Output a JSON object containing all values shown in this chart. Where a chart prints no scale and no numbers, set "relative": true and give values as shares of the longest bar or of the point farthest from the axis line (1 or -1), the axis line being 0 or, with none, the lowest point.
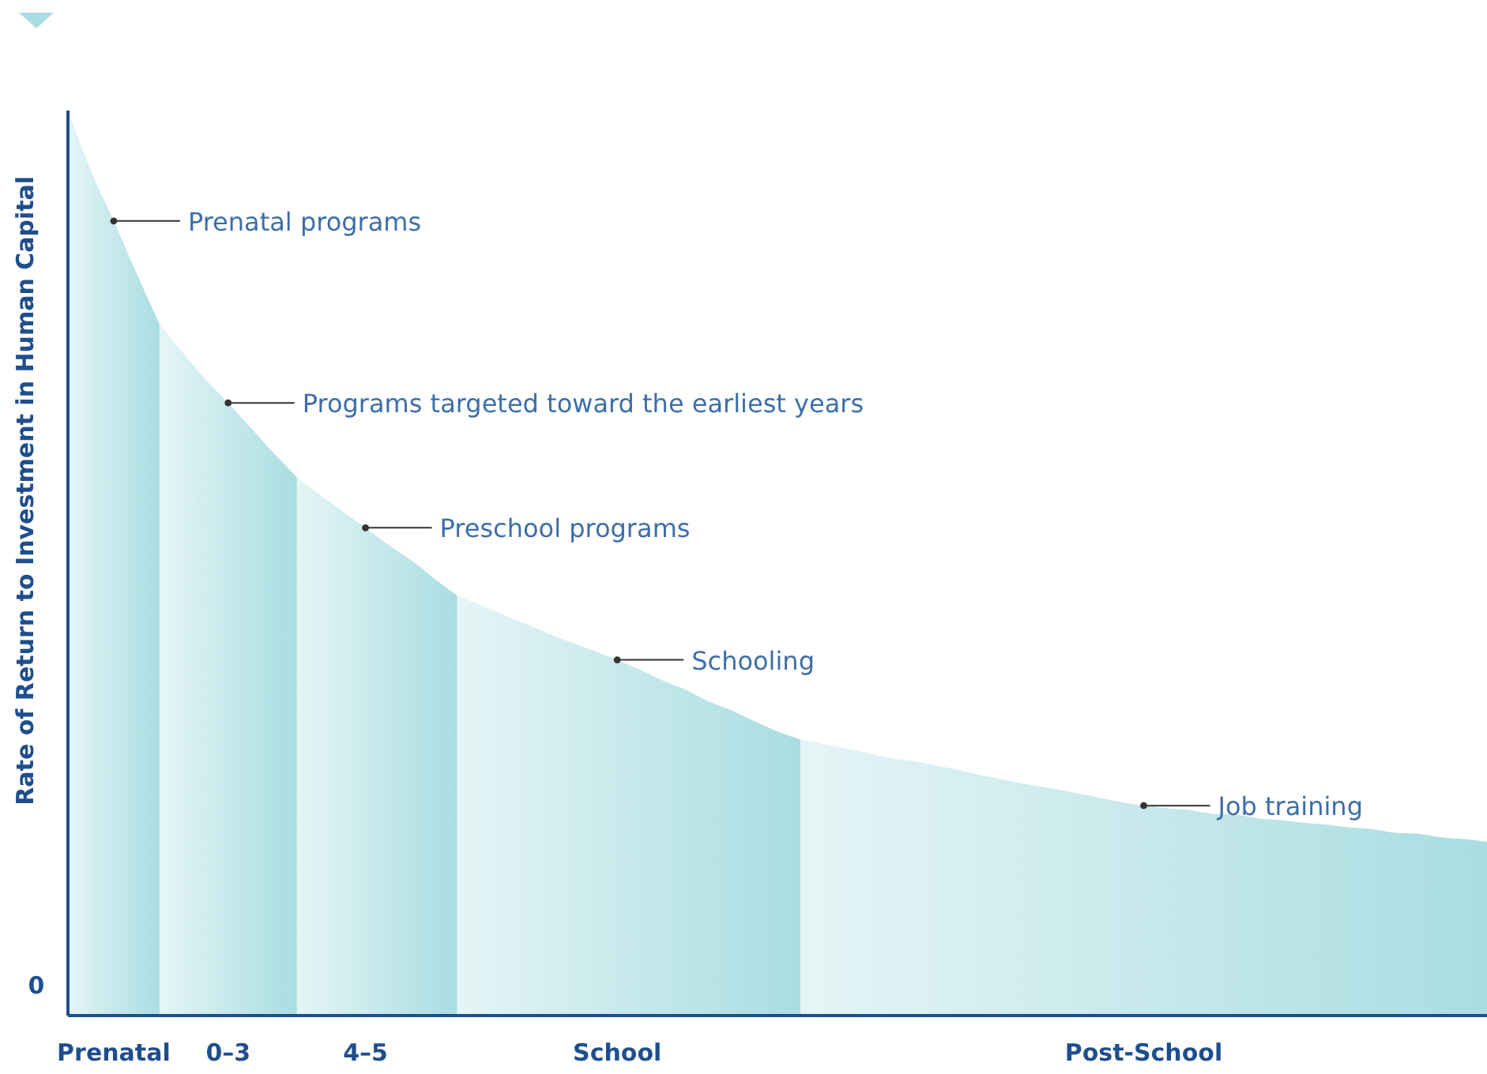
{
  "chart_data": {
    "type": "area",
    "relative": true,
    "ylabel": "Rate of Return to Investment in Human Capital",
    "categories": [
      null,
      null,
      "Prenatal",
      null,
      null,
      null,
      null,
      "0–3",
      null,
      null,
      null,
      null,
      null,
      "4–5",
      null,
      null,
      null,
      null,
      null,
      null,
      null,
      null,
      null,
      null,
      "School",
      null,
      null,
      null,
      null,
      null,
      null,
      null,
      null,
      null,
      null,
      null,
      null,
      null,
      null,
      null,
      null,
      null,
      null,
      null,
      null,
      null,
      null,
      "Post-School",
      null,
      null,
      null,
      null,
      null,
      null,
      null,
      null,
      null,
      null,
      null,
      null,
      null,
      null,
      null
    ],
    "series": [
      {
        "color": "#a9dde1",
        "values": [
          1.0,
          0.934,
          0.878,
          0.82,
          0.764,
          null,
          null,
          null,
          null,
          null,
          null,
          null,
          null,
          null,
          null,
          null,
          null,
          null,
          null,
          null,
          null,
          null,
          null,
          null,
          null,
          null,
          null,
          null,
          null,
          null,
          null,
          null,
          null,
          null,
          null,
          null,
          null,
          null,
          null,
          null,
          null,
          null,
          null,
          null,
          null,
          null,
          null,
          null,
          null,
          null,
          null,
          null,
          null,
          null,
          null,
          null,
          null,
          null,
          null,
          null,
          null,
          null,
          null
        ]
      },
      {
        "color": "#a9dde1",
        "values": [
          null,
          null,
          null,
          null,
          0.764,
          0.733,
          0.703,
          0.677,
          0.649,
          0.621,
          0.595,
          null,
          null,
          null,
          null,
          null,
          null,
          null,
          null,
          null,
          null,
          null,
          null,
          null,
          null,
          null,
          null,
          null,
          null,
          null,
          null,
          null,
          null,
          null,
          null,
          null,
          null,
          null,
          null,
          null,
          null,
          null,
          null,
          null,
          null,
          null,
          null,
          null,
          null,
          null,
          null,
          null,
          null,
          null,
          null,
          null,
          null,
          null,
          null,
          null,
          null,
          null,
          null
        ]
      },
      {
        "color": "#a9dde1",
        "values": [
          null,
          null,
          null,
          null,
          null,
          null,
          null,
          null,
          null,
          null,
          0.595,
          0.576,
          0.557,
          0.539,
          0.52,
          0.503,
          0.483,
          0.464,
          null,
          null,
          null,
          null,
          null,
          null,
          null,
          null,
          null,
          null,
          null,
          null,
          null,
          null,
          null,
          null,
          null,
          null,
          null,
          null,
          null,
          null,
          null,
          null,
          null,
          null,
          null,
          null,
          null,
          null,
          null,
          null,
          null,
          null,
          null,
          null,
          null,
          null,
          null,
          null,
          null,
          null,
          null,
          null,
          null
        ]
      },
      {
        "color": "#a9dde1",
        "values": [
          null,
          null,
          null,
          null,
          null,
          null,
          null,
          null,
          null,
          null,
          null,
          null,
          null,
          null,
          null,
          null,
          null,
          0.464,
          0.454,
          0.443,
          0.433,
          0.422,
          0.412,
          0.403,
          0.393,
          0.382,
          0.37,
          0.36,
          0.347,
          0.337,
          0.325,
          0.314,
          0.305,
          null,
          null,
          null,
          null,
          null,
          null,
          null,
          null,
          null,
          null,
          null,
          null,
          null,
          null,
          null,
          null,
          null,
          null,
          null,
          null,
          null,
          null,
          null,
          null,
          null,
          null,
          null,
          null,
          null,
          null
        ]
      },
      {
        "color": "#a9dde1",
        "values": [
          null,
          null,
          null,
          null,
          null,
          null,
          null,
          null,
          null,
          null,
          null,
          null,
          null,
          null,
          null,
          null,
          null,
          null,
          null,
          null,
          null,
          null,
          null,
          null,
          null,
          null,
          null,
          null,
          null,
          null,
          null,
          null,
          0.305,
          0.3,
          0.295,
          0.29,
          0.284,
          0.281,
          0.276,
          0.271,
          0.265,
          0.26,
          0.255,
          0.251,
          0.246,
          0.241,
          0.236,
          0.232,
          0.229,
          0.227,
          0.223,
          0.222,
          0.218,
          0.216,
          0.213,
          0.211,
          0.208,
          0.206,
          0.202,
          0.201,
          0.197,
          0.195,
          0.192
        ]
      }
    ],
    "annotations": [
      "0",
      {
        "text": "Prenatal programs",
        "x": "Prenatal",
        "y": 0.878
      },
      {
        "text": "Programs targeted toward the earliest years",
        "x": "0–3",
        "y": 0.677
      },
      {
        "text": "Preschool programs",
        "x": "4–5",
        "y": 0.539
      },
      {
        "text": "Schooling",
        "x": "School",
        "y": 0.393
      },
      {
        "text": "Job training",
        "x": "Post-School",
        "y": 0.232
      }
    ]
  }
}
